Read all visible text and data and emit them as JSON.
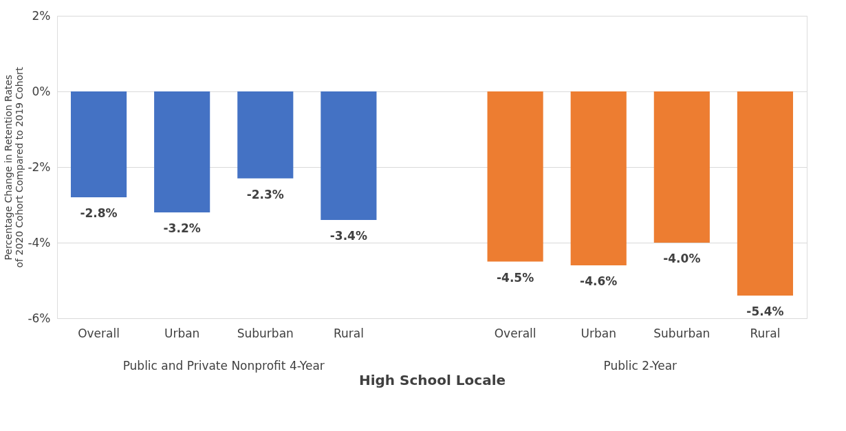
{
  "chart_data": {
    "type": "bar",
    "categories": [
      "Overall",
      "Urban",
      "Suburban",
      "Rural",
      null,
      "Overall",
      "Urban",
      "Suburban",
      "Rural"
    ],
    "values": [
      -2.8,
      -3.2,
      -2.3,
      -3.4,
      null,
      -4.5,
      -4.6,
      -4.0,
      -5.4
    ],
    "colors": [
      "#4472c4",
      "#4472c4",
      "#4472c4",
      "#4472c4",
      "#4472c4",
      "#ed7d31",
      "#ed7d31",
      "#ed7d31",
      "#ed7d31"
    ],
    "value_labels": [
      "-2.8%",
      "-3.2%",
      "-2.3%",
      "-3.4%",
      null,
      "-4.5%",
      "-4.6%",
      "-4.0%",
      "-5.4%"
    ],
    "ylim": [
      -6,
      2
    ],
    "yticks": [
      {
        "value": -6,
        "label": "-6%"
      },
      {
        "value": -4,
        "label": "-4%"
      },
      {
        "value": -2,
        "label": "-2%"
      },
      {
        "value": 0,
        "label": "0%"
      },
      {
        "value": 2,
        "label": "2%"
      }
    ],
    "ylabel": "Percentage Change in Retention Rates of 2020 Cohort Compared to 2019 Cohort",
    "xlabel": "High School Locale",
    "annotations": [
      "Public and Private Nonprofit 4-Year",
      "Public 2-Year"
    ],
    "grid": "y"
  }
}
